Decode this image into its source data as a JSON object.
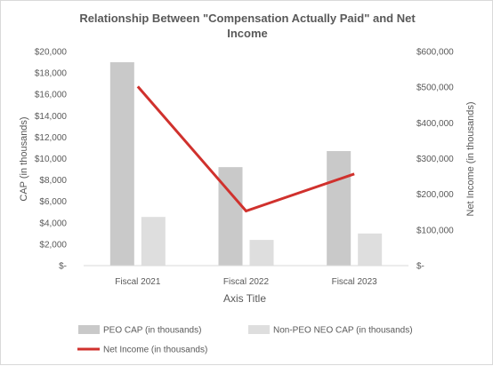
{
  "chart_data": {
    "type": "bar",
    "title_lines": [
      "Relationship Between \"Compensation Actually Paid\" and Net",
      "Income"
    ],
    "categories": [
      "Fiscal 2021",
      "Fiscal 2022",
      "Fiscal 2023"
    ],
    "xlabel": "Axis Title",
    "ylabel_left": "CAP (in thousands)",
    "ylabel_right": "Net Income (in thousands)",
    "ylim_left": [
      0,
      20000
    ],
    "ylim_right": [
      0,
      600000
    ],
    "yticks_left": [
      "$-",
      "$2,000",
      "$4,000",
      "$6,000",
      "$8,000",
      "$10,000",
      "$12,000",
      "$14,000",
      "$16,000",
      "$18,000",
      "$20,000"
    ],
    "yticks_right": [
      "$-",
      "$100,000",
      "$200,000",
      "$300,000",
      "$400,000",
      "$500,000",
      "$600,000"
    ],
    "series": [
      {
        "name": "PEO CAP (in thousands)",
        "type": "bar",
        "axis": "left",
        "color": "#c9c9c9",
        "values": [
          19000,
          9200,
          10700
        ]
      },
      {
        "name": "Non-PEO NEO CAP (in thousands)",
        "type": "bar",
        "axis": "left",
        "color": "#dedede",
        "values": [
          4550,
          2400,
          3000
        ]
      },
      {
        "name": "Net Income (in thousands)",
        "type": "line",
        "axis": "right",
        "color": "#d0312d",
        "values": [
          502000,
          153000,
          257000
        ]
      }
    ],
    "legend_position": "bottom",
    "grid": false
  }
}
